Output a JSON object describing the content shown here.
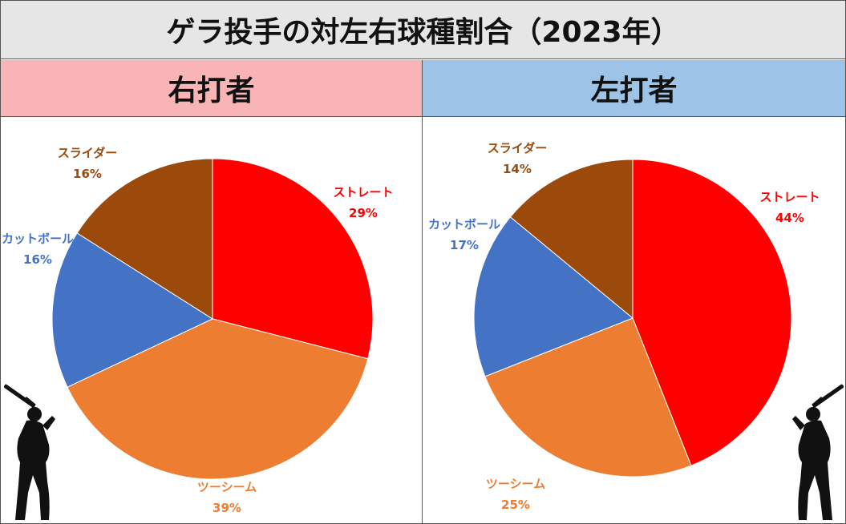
{
  "title": "ゲラ投手の対左右球種割合（2023年）",
  "colors": {
    "straight": "#ff0000",
    "two_seam": "#ed7d31",
    "cutter": "#4472c4",
    "slider": "#9c4a0b",
    "right_header_bg": "#f9b4b6",
    "left_header_bg": "#9dc3e6"
  },
  "chart_data": [
    {
      "type": "pie",
      "title": "右打者",
      "slices": [
        {
          "label": "ストレート",
          "value": 29,
          "display": "29%",
          "color": "#ff0000"
        },
        {
          "label": "ツーシーム",
          "value": 39,
          "display": "39%",
          "color": "#ed7d31"
        },
        {
          "label": "カットボール",
          "value": 16,
          "display": "16%",
          "color": "#4472c4"
        },
        {
          "label": "スライダー",
          "value": 16,
          "display": "16%",
          "color": "#9c4a0b"
        }
      ]
    },
    {
      "type": "pie",
      "title": "左打者",
      "slices": [
        {
          "label": "ストレート",
          "value": 44,
          "display": "44%",
          "color": "#ff0000"
        },
        {
          "label": "ツーシーム",
          "value": 25,
          "display": "25%",
          "color": "#ed7d31"
        },
        {
          "label": "カットボール",
          "value": 17,
          "display": "17%",
          "color": "#4472c4"
        },
        {
          "label": "スライダー",
          "value": 14,
          "display": "14%",
          "color": "#9c4a0b"
        }
      ]
    }
  ],
  "icons": {
    "right_batter": "batter-silhouette-icon",
    "left_batter": "batter-silhouette-icon"
  }
}
